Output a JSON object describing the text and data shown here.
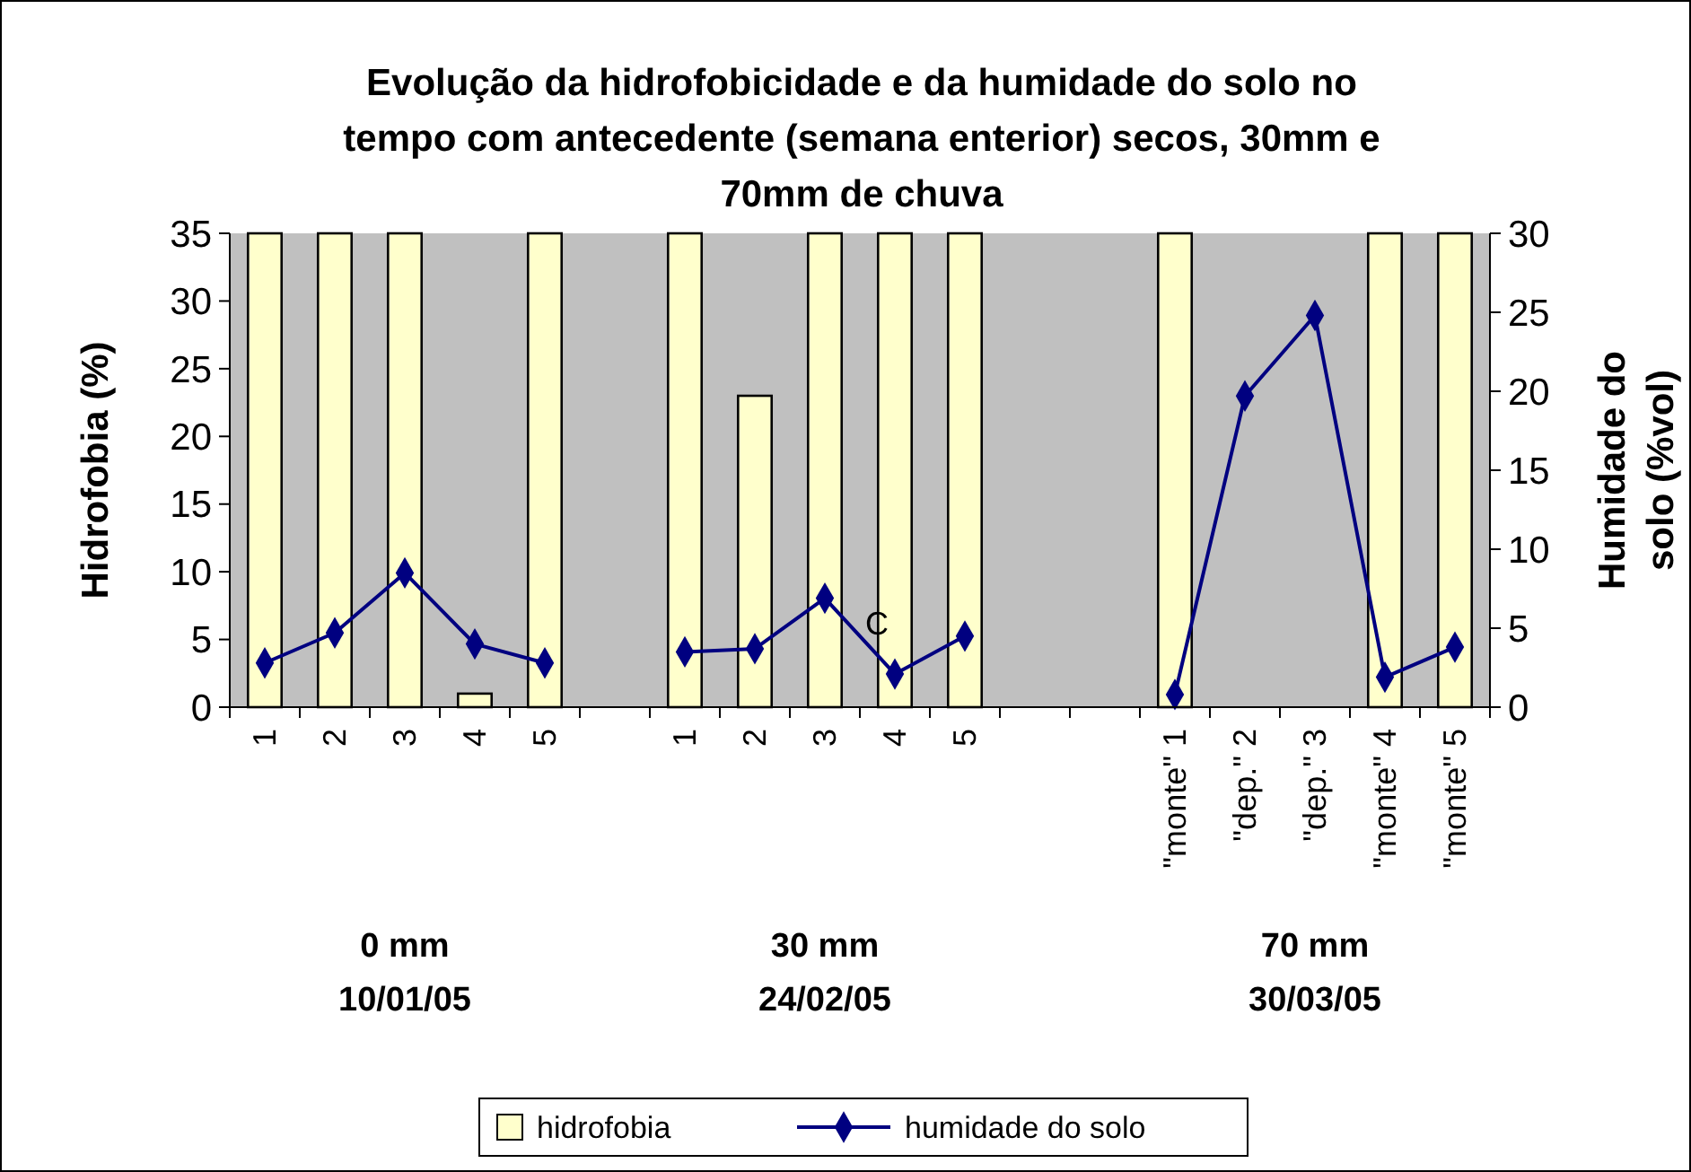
{
  "chart_data": {
    "type": "bar",
    "title": "Evolução da hidrofobicidade e da humidade do solo no tempo com antecedente (semana enterior) secos, 30mm e 70mm de chuva",
    "ylabel": "Hidrofobia  (%)",
    "y2label": "Humidade do solo (%vol)",
    "categories": [
      "1",
      "2",
      "3",
      "4",
      "5",
      null,
      "1",
      "2",
      "3",
      "4",
      "5",
      null,
      null,
      "\"monte\" 1",
      "\"dep.\" 2",
      "\"dep.\" 3",
      "\"monte\" 4",
      "\"monte\" 5"
    ],
    "series": [
      {
        "name": "hidrofobia",
        "color": "#ffffcc",
        "values": [
          35,
          35,
          35,
          1,
          35,
          null,
          35,
          23,
          35,
          35,
          35,
          null,
          null,
          35,
          null,
          null,
          35,
          35
        ]
      },
      {
        "name": "humidade do solo",
        "type": "line",
        "axis": "y2",
        "color": "#000080",
        "marker": "diamond",
        "values": [
          2.8,
          4.7,
          8.5,
          4.0,
          2.8,
          null,
          3.5,
          3.7,
          6.9,
          2.1,
          4.5,
          null,
          null,
          0.8,
          19.7,
          24.8,
          1.9,
          3.8
        ]
      }
    ],
    "ylim": [
      0,
      35
    ],
    "yticks": [
      0,
      5,
      10,
      15,
      20,
      25,
      30,
      35
    ],
    "y2lim": [
      0,
      30
    ],
    "y2ticks": [
      0,
      5,
      10,
      15,
      20,
      25,
      30
    ],
    "legend": "bottom",
    "grid": false,
    "annotations": [
      "C",
      "0 mm",
      "10/01/05",
      "30 mm",
      "24/02/05",
      "70 mm",
      "30/03/05"
    ]
  }
}
